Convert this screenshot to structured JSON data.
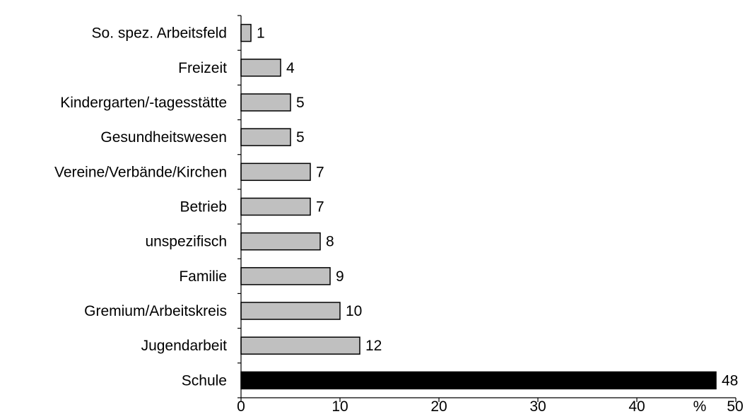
{
  "chart_data": {
    "type": "bar",
    "orientation": "horizontal",
    "categories": [
      "So. spez. Arbeitsfeld",
      "Freizeit",
      "Kindergarten/-tagesstätte",
      "Gesundheitswesen",
      "Vereine/Verbände/Kirchen",
      "Betrieb",
      "unspezifisch",
      "Familie",
      "Gremium/Arbeitskreis",
      "Jugendarbeit",
      "Schule"
    ],
    "values": [
      1,
      4,
      5,
      5,
      7,
      7,
      8,
      9,
      10,
      12,
      48
    ],
    "data_labels": [
      "1",
      "4",
      "5",
      "5",
      "7",
      "7",
      "8",
      "9",
      "10",
      "12",
      "48"
    ],
    "highlight_category": "Schule",
    "colors": {
      "bar": "#c0c0c0",
      "highlight": "#000000",
      "outline": "#000000"
    },
    "xlim": [
      0,
      50
    ],
    "xticks": [
      0,
      10,
      20,
      30,
      40,
      50
    ],
    "xtick_labels": [
      "0",
      "10",
      "20",
      "30",
      "40",
      "50"
    ],
    "unit_label": "%",
    "grid": false,
    "legend": "none",
    "title": "",
    "xlabel": "",
    "ylabel": ""
  }
}
